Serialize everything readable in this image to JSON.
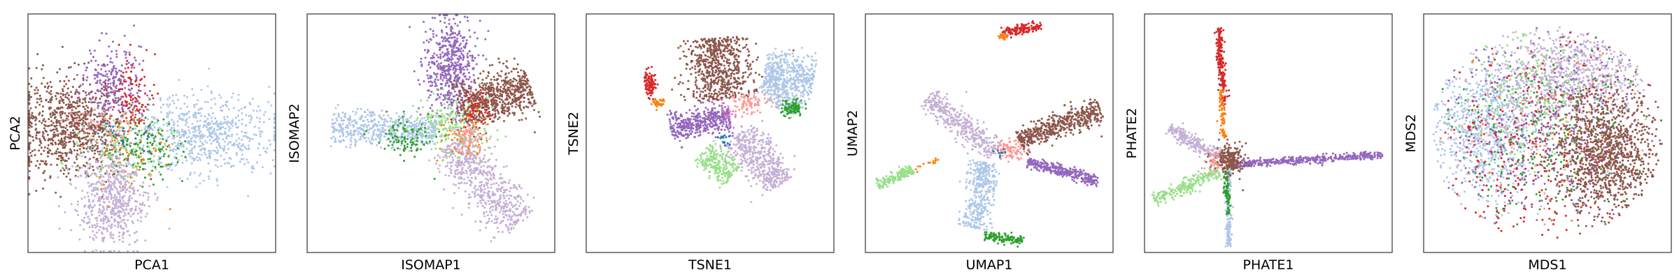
{
  "chart_data": [
    {
      "type": "scatter",
      "xlabel": "PCA1",
      "ylabel": "PCA2",
      "xticks": [],
      "yticks": [],
      "grid": false,
      "legend": "none",
      "series": [
        {
          "color": "#8c564b",
          "clusters": [
            {
              "cx": 0.18,
              "cy": 0.47,
              "sx": 0.12,
              "sy": 0.1,
              "n": 900,
              "shape": "blob"
            }
          ]
        },
        {
          "color": "#aec7e8",
          "clusters": [
            {
              "cx": 0.72,
              "cy": 0.5,
              "sx": 0.14,
              "sy": 0.08,
              "n": 650,
              "shape": "blob"
            }
          ]
        },
        {
          "color": "#c5b0d5",
          "clusters": [
            {
              "cx": 0.34,
              "cy": 0.78,
              "sx": 0.07,
              "sy": 0.1,
              "n": 600,
              "shape": "blob"
            }
          ]
        },
        {
          "color": "#9467bd",
          "clusters": [
            {
              "cx": 0.34,
              "cy": 0.3,
              "sx": 0.06,
              "sy": 0.09,
              "n": 260,
              "shape": "blob"
            }
          ]
        },
        {
          "color": "#d62728",
          "clusters": [
            {
              "cx": 0.42,
              "cy": 0.35,
              "sx": 0.04,
              "sy": 0.08,
              "n": 100,
              "shape": "blob"
            }
          ]
        },
        {
          "color": "#98df8a",
          "clusters": [
            {
              "cx": 0.38,
              "cy": 0.55,
              "sx": 0.1,
              "sy": 0.07,
              "n": 160,
              "shape": "blob"
            }
          ]
        },
        {
          "color": "#2ca02c",
          "clusters": [
            {
              "cx": 0.48,
              "cy": 0.57,
              "sx": 0.07,
              "sy": 0.06,
              "n": 110,
              "shape": "blob"
            }
          ]
        },
        {
          "color": "#ff7f0e",
          "clusters": [
            {
              "cx": 0.42,
              "cy": 0.58,
              "sx": 0.08,
              "sy": 0.1,
              "n": 50,
              "shape": "blob"
            }
          ]
        },
        {
          "color": "#ff9896",
          "clusters": [
            {
              "cx": 0.3,
              "cy": 0.48,
              "sx": 0.06,
              "sy": 0.05,
              "n": 60,
              "shape": "blob"
            }
          ]
        },
        {
          "color": "#1f77b4",
          "clusters": [
            {
              "cx": 0.4,
              "cy": 0.52,
              "sx": 0.06,
              "sy": 0.05,
              "n": 25,
              "shape": "blob"
            }
          ]
        }
      ]
    },
    {
      "type": "scatter",
      "xlabel": "ISOMAP1",
      "ylabel": "ISOMAP2",
      "xticks": [],
      "yticks": [],
      "grid": false,
      "legend": "none",
      "series": [
        {
          "color": "#9467bd",
          "clusters": [
            {
              "cx": 0.58,
              "cy": 0.22,
              "sx": 0.05,
              "sy": 0.11,
              "n": 550,
              "shape": "blob"
            }
          ]
        },
        {
          "color": "#8c564b",
          "clusters": [
            {
              "x0": 0.62,
              "y0": 0.4,
              "x1": 0.9,
              "y1": 0.3,
              "w": 0.05,
              "n": 650,
              "shape": "band"
            }
          ]
        },
        {
          "color": "#aec7e8",
          "clusters": [
            {
              "x0": 0.1,
              "y0": 0.47,
              "x1": 0.52,
              "y1": 0.5,
              "w": 0.035,
              "n": 520,
              "shape": "band"
            }
          ]
        },
        {
          "color": "#c5b0d5",
          "clusters": [
            {
              "x0": 0.57,
              "y0": 0.55,
              "x1": 0.86,
              "y1": 0.88,
              "w": 0.05,
              "n": 620,
              "shape": "band"
            }
          ]
        },
        {
          "color": "#98df8a",
          "clusters": [
            {
              "cx": 0.58,
              "cy": 0.46,
              "sx": 0.08,
              "sy": 0.06,
              "n": 220,
              "shape": "blob"
            }
          ]
        },
        {
          "color": "#2ca02c",
          "clusters": [
            {
              "cx": 0.4,
              "cy": 0.52,
              "sx": 0.06,
              "sy": 0.04,
              "n": 100,
              "shape": "blob"
            }
          ]
        },
        {
          "color": "#d62728",
          "clusters": [
            {
              "cx": 0.68,
              "cy": 0.4,
              "sx": 0.04,
              "sy": 0.04,
              "n": 70,
              "shape": "blob"
            }
          ]
        },
        {
          "color": "#ff7f0e",
          "clusters": [
            {
              "cx": 0.63,
              "cy": 0.5,
              "sx": 0.05,
              "sy": 0.05,
              "n": 50,
              "shape": "blob"
            }
          ]
        },
        {
          "color": "#ff9896",
          "clusters": [
            {
              "cx": 0.65,
              "cy": 0.52,
              "sx": 0.03,
              "sy": 0.03,
              "n": 60,
              "shape": "blob"
            }
          ]
        }
      ]
    },
    {
      "type": "scatter",
      "xlabel": "TSNE1",
      "ylabel": "TSNE2",
      "xticks": [],
      "yticks": [],
      "grid": false,
      "legend": "none",
      "series": [
        {
          "color": "#8c564b",
          "clusters": [
            {
              "x0": 0.52,
              "y0": 0.1,
              "x1": 0.54,
              "y1": 0.36,
              "w": 0.065,
              "n": 650,
              "shape": "band"
            }
          ]
        },
        {
          "color": "#aec7e8",
          "clusters": [
            {
              "x0": 0.72,
              "y0": 0.24,
              "x1": 0.92,
              "y1": 0.27,
              "w": 0.045,
              "n": 420,
              "shape": "band"
            },
            {
              "x0": 0.72,
              "y0": 0.28,
              "x1": 0.86,
              "y1": 0.4,
              "w": 0.03,
              "n": 180,
              "shape": "band"
            }
          ]
        },
        {
          "color": "#9467bd",
          "clusters": [
            {
              "x0": 0.34,
              "y0": 0.48,
              "x1": 0.58,
              "y1": 0.43,
              "w": 0.03,
              "n": 420,
              "shape": "band"
            }
          ]
        },
        {
          "color": "#c5b0d5",
          "clusters": [
            {
              "x0": 0.62,
              "y0": 0.5,
              "x1": 0.78,
              "y1": 0.72,
              "w": 0.04,
              "n": 480,
              "shape": "band"
            }
          ]
        },
        {
          "color": "#98df8a",
          "clusters": [
            {
              "x0": 0.47,
              "y0": 0.58,
              "x1": 0.59,
              "y1": 0.68,
              "w": 0.03,
              "n": 230,
              "shape": "band"
            }
          ]
        },
        {
          "color": "#d62728",
          "clusters": [
            {
              "cx": 0.26,
              "cy": 0.29,
              "sx": 0.012,
              "sy": 0.025,
              "n": 110,
              "shape": "blob"
            }
          ]
        },
        {
          "color": "#ff7f0e",
          "clusters": [
            {
              "cx": 0.29,
              "cy": 0.37,
              "sx": 0.015,
              "sy": 0.01,
              "n": 35,
              "shape": "blob"
            }
          ]
        },
        {
          "color": "#2ca02c",
          "clusters": [
            {
              "cx": 0.83,
              "cy": 0.39,
              "sx": 0.025,
              "sy": 0.018,
              "n": 90,
              "shape": "blob"
            }
          ]
        },
        {
          "color": "#ff9896",
          "clusters": [
            {
              "cx": 0.65,
              "cy": 0.38,
              "sx": 0.04,
              "sy": 0.02,
              "n": 80,
              "shape": "blob"
            }
          ]
        },
        {
          "color": "#e377c2",
          "clusters": [
            {
              "cx": 0.58,
              "cy": 0.43,
              "sx": 0.02,
              "sy": 0.02,
              "n": 20,
              "shape": "blob"
            }
          ]
        },
        {
          "color": "#1f77b4",
          "clusters": [
            {
              "cx": 0.56,
              "cy": 0.52,
              "sx": 0.01,
              "sy": 0.015,
              "n": 15,
              "shape": "blob"
            }
          ]
        }
      ]
    },
    {
      "type": "scatter",
      "xlabel": "UMAP1",
      "ylabel": "UMAP2",
      "xticks": [],
      "yticks": [],
      "grid": false,
      "legend": "none",
      "series": [
        {
          "color": "#8c564b",
          "clusters": [
            {
              "x0": 0.62,
              "y0": 0.53,
              "x1": 0.95,
              "y1": 0.4,
              "w": 0.025,
              "n": 520,
              "shape": "band"
            }
          ]
        },
        {
          "color": "#9467bd",
          "clusters": [
            {
              "x0": 0.65,
              "y0": 0.62,
              "x1": 0.94,
              "y1": 0.7,
              "w": 0.012,
              "n": 300,
              "shape": "band"
            }
          ]
        },
        {
          "color": "#c5b0d5",
          "clusters": [
            {
              "x0": 0.25,
              "y0": 0.35,
              "x1": 0.52,
              "y1": 0.58,
              "w": 0.025,
              "n": 380,
              "shape": "band"
            }
          ]
        },
        {
          "color": "#aec7e8",
          "clusters": [
            {
              "x0": 0.48,
              "y0": 0.62,
              "x1": 0.44,
              "y1": 0.9,
              "w": 0.03,
              "n": 380,
              "shape": "band"
            }
          ]
        },
        {
          "color": "#2ca02c",
          "clusters": [
            {
              "x0": 0.48,
              "y0": 0.93,
              "x1": 0.64,
              "y1": 0.95,
              "w": 0.01,
              "n": 120,
              "shape": "band"
            }
          ]
        },
        {
          "color": "#d62728",
          "clusters": [
            {
              "x0": 0.55,
              "y0": 0.08,
              "x1": 0.71,
              "y1": 0.05,
              "w": 0.01,
              "n": 130,
              "shape": "band"
            }
          ]
        },
        {
          "color": "#ff7f0e",
          "clusters": [
            {
              "x0": 0.54,
              "y0": 0.1,
              "x1": 0.57,
              "y1": 0.09,
              "w": 0.008,
              "n": 25,
              "shape": "band"
            },
            {
              "x0": 0.2,
              "y0": 0.65,
              "x1": 0.3,
              "y1": 0.61,
              "w": 0.006,
              "n": 15,
              "shape": "band"
            }
          ]
        },
        {
          "color": "#98df8a",
          "clusters": [
            {
              "x0": 0.05,
              "y0": 0.72,
              "x1": 0.19,
              "y1": 0.65,
              "w": 0.012,
              "n": 170,
              "shape": "band"
            }
          ]
        },
        {
          "color": "#ff9896",
          "clusters": [
            {
              "cx": 0.58,
              "cy": 0.57,
              "sx": 0.03,
              "sy": 0.02,
              "n": 90,
              "shape": "blob"
            }
          ]
        },
        {
          "color": "#1f77b4",
          "clusters": [
            {
              "cx": 0.55,
              "cy": 0.58,
              "sx": 0.015,
              "sy": 0.01,
              "n": 10,
              "shape": "blob"
            }
          ]
        }
      ]
    },
    {
      "type": "scatter",
      "xlabel": "PHATE1",
      "ylabel": "PHATE2",
      "xticks": [],
      "yticks": [],
      "grid": false,
      "legend": "none",
      "series": [
        {
          "color": "#9467bd",
          "clusters": [
            {
              "x0": 0.36,
              "y0": 0.63,
              "x1": 0.96,
              "y1": 0.59,
              "w": 0.008,
              "n": 420,
              "shape": "band"
            }
          ]
        },
        {
          "color": "#d62728",
          "clusters": [
            {
              "x0": 0.3,
              "y0": 0.06,
              "x1": 0.32,
              "y1": 0.38,
              "w": 0.008,
              "n": 200,
              "shape": "band"
            }
          ]
        },
        {
          "color": "#ff7f0e",
          "clusters": [
            {
              "x0": 0.31,
              "y0": 0.32,
              "x1": 0.32,
              "y1": 0.52,
              "w": 0.006,
              "n": 70,
              "shape": "band"
            }
          ]
        },
        {
          "color": "#c5b0d5",
          "clusters": [
            {
              "x0": 0.1,
              "y0": 0.48,
              "x1": 0.3,
              "y1": 0.6,
              "w": 0.015,
              "n": 220,
              "shape": "band"
            }
          ]
        },
        {
          "color": "#aec7e8",
          "clusters": [
            {
              "x0": 0.34,
              "y0": 0.65,
              "x1": 0.34,
              "y1": 0.98,
              "w": 0.006,
              "n": 180,
              "shape": "band"
            }
          ]
        },
        {
          "color": "#2ca02c",
          "clusters": [
            {
              "x0": 0.33,
              "y0": 0.66,
              "x1": 0.34,
              "y1": 0.84,
              "w": 0.007,
              "n": 80,
              "shape": "band"
            }
          ]
        },
        {
          "color": "#98df8a",
          "clusters": [
            {
              "x0": 0.04,
              "y0": 0.78,
              "x1": 0.3,
              "y1": 0.66,
              "w": 0.015,
              "n": 230,
              "shape": "band"
            }
          ]
        },
        {
          "color": "#8c564b",
          "clusters": [
            {
              "cx": 0.34,
              "cy": 0.61,
              "sx": 0.03,
              "sy": 0.03,
              "n": 240,
              "shape": "blob"
            }
          ]
        },
        {
          "color": "#ff9896",
          "clusters": [
            {
              "cx": 0.28,
              "cy": 0.62,
              "sx": 0.02,
              "sy": 0.02,
              "n": 40,
              "shape": "blob"
            }
          ]
        }
      ]
    },
    {
      "type": "scatter",
      "xlabel": "MDS1",
      "ylabel": "MDS2",
      "xticks": [],
      "yticks": [],
      "grid": false,
      "legend": "none",
      "series": [
        {
          "color": "#aec7e8",
          "clusters": [
            {
              "cx": 0.25,
              "cy": 0.48,
              "sx": 0.11,
              "sy": 0.15,
              "n": 850,
              "shape": "disk",
              "r": 0.24
            }
          ]
        },
        {
          "color": "#c5b0d5",
          "clusters": [
            {
              "cx": 0.6,
              "cy": 0.25,
              "sx": 0.15,
              "sy": 0.1,
              "n": 700,
              "shape": "disk",
              "r": 0.28
            }
          ]
        },
        {
          "color": "#9467bd",
          "clusters": [
            {
              "cx": 0.5,
              "cy": 0.45,
              "sx": 0.2,
              "sy": 0.2,
              "n": 450,
              "shape": "disk",
              "r": 0.42
            }
          ]
        },
        {
          "color": "#98df8a",
          "clusters": [
            {
              "cx": 0.45,
              "cy": 0.35,
              "sx": 0.15,
              "sy": 0.15,
              "n": 250,
              "shape": "disk",
              "r": 0.32
            }
          ]
        },
        {
          "color": "#2ca02c",
          "clusters": [
            {
              "cx": 0.48,
              "cy": 0.52,
              "sx": 0.2,
              "sy": 0.2,
              "n": 220,
              "shape": "disk",
              "r": 0.4
            }
          ]
        },
        {
          "color": "#d62728",
          "clusters": [
            {
              "cx": 0.45,
              "cy": 0.58,
              "sx": 0.2,
              "sy": 0.2,
              "n": 280,
              "shape": "disk",
              "r": 0.43
            }
          ]
        },
        {
          "color": "#ff7f0e",
          "clusters": [
            {
              "cx": 0.5,
              "cy": 0.5,
              "sx": 0.2,
              "sy": 0.2,
              "n": 40,
              "shape": "disk",
              "r": 0.4
            }
          ]
        },
        {
          "color": "#ff9896",
          "clusters": [
            {
              "cx": 0.48,
              "cy": 0.5,
              "sx": 0.2,
              "sy": 0.2,
              "n": 60,
              "shape": "disk",
              "r": 0.38
            }
          ]
        },
        {
          "color": "#8c564b",
          "clusters": [
            {
              "cx": 0.74,
              "cy": 0.58,
              "sx": 0.11,
              "sy": 0.13,
              "n": 1100,
              "shape": "disk",
              "r": 0.21
            }
          ]
        }
      ]
    }
  ]
}
